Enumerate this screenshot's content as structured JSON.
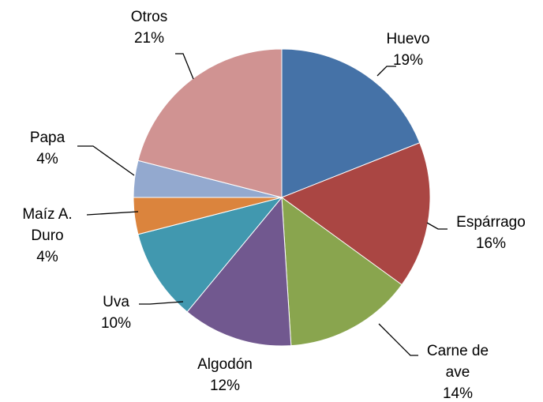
{
  "chart_data": {
    "type": "pie",
    "categories": [
      "Huevo",
      "Espárrago",
      "Carne de ave",
      "Algodón",
      "Uva",
      "Maíz A. Duro",
      "Papa",
      "Otros"
    ],
    "values": [
      19,
      16,
      14,
      12,
      10,
      4,
      4,
      21
    ],
    "value_labels": [
      "19%",
      "16%",
      "14%",
      "12%",
      "10%",
      "4%",
      "4%",
      "21%"
    ],
    "colors": [
      "#4572a7",
      "#aa4643",
      "#89a54e",
      "#71588f",
      "#4198af",
      "#db843d",
      "#93a9cf",
      "#d09392"
    ]
  }
}
